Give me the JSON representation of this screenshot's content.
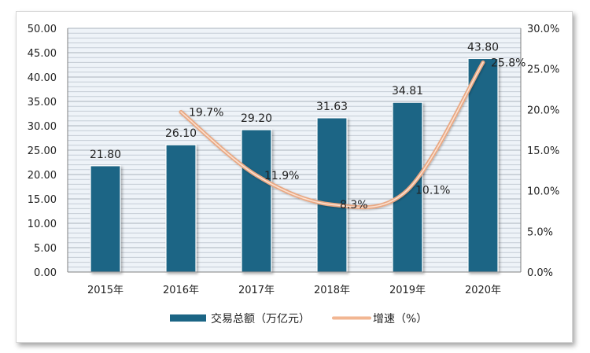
{
  "chart_data": {
    "type": "bar",
    "categories": [
      "2015年",
      "2016年",
      "2017年",
      "2018年",
      "2019年",
      "2020年"
    ],
    "series": [
      {
        "name": "交易总额（万亿元）",
        "type": "bar",
        "axis": "left",
        "values": [
          21.8,
          26.1,
          29.2,
          31.63,
          34.81,
          43.8
        ],
        "labels": [
          "21.80",
          "26.10",
          "29.20",
          "31.63",
          "34.81",
          "43.80"
        ],
        "color": "#1b6585"
      },
      {
        "name": "增速（%）",
        "type": "line",
        "axis": "right",
        "values": [
          null,
          19.7,
          11.9,
          8.3,
          10.1,
          25.8
        ],
        "labels": [
          "",
          "19.7%",
          "11.9%",
          "8.3%",
          "10.1%",
          "25.8%"
        ],
        "color": "#f2b692"
      }
    ],
    "y_left": {
      "ylim": [
        0,
        50
      ],
      "ticks": [
        "0.00",
        "5.00",
        "10.00",
        "15.00",
        "20.00",
        "25.00",
        "30.00",
        "35.00",
        "40.00",
        "45.00",
        "50.00"
      ]
    },
    "y_right": {
      "ylim": [
        0,
        30
      ],
      "ticks": [
        "0.0%",
        "5.0%",
        "10.0%",
        "15.0%",
        "20.0%",
        "25.0%",
        "30.0%"
      ]
    },
    "grid": true,
    "legend": "bottom-center"
  }
}
